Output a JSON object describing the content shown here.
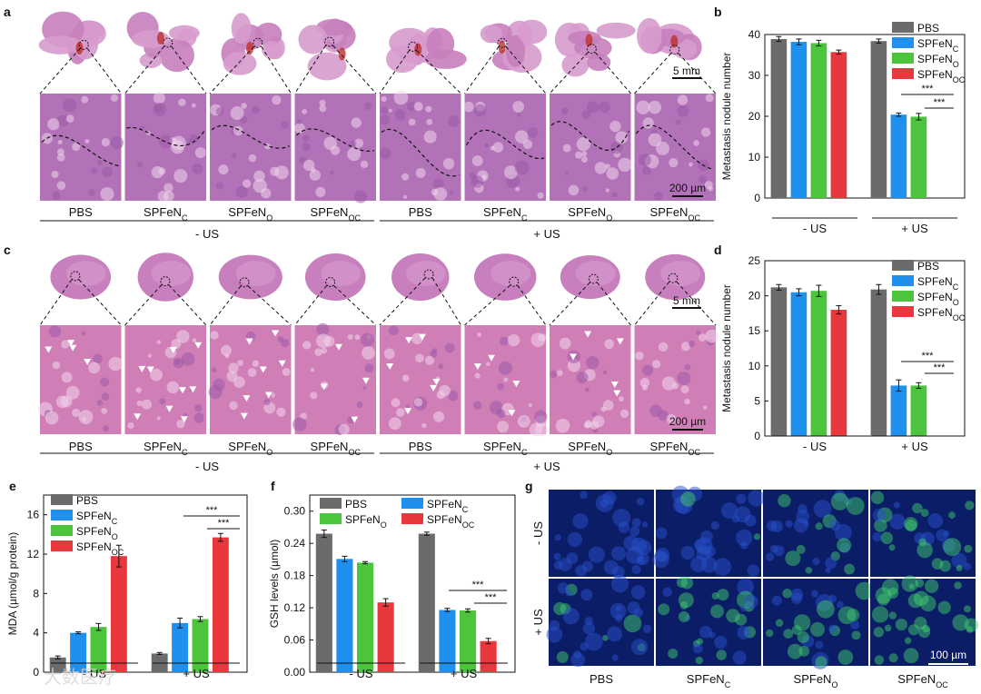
{
  "figure": {
    "panel_a": {
      "letter": "a",
      "groups": [
        "PBS",
        "SPFeN",
        "SPFeN",
        "SPFeN",
        "PBS",
        "SPFeN",
        "SPFeN",
        "SPFeN"
      ],
      "group_subs": [
        "",
        "C",
        "O",
        "OC",
        "",
        "C",
        "O",
        "OC"
      ],
      "conditions": [
        "- US",
        "+ US"
      ],
      "scale_top": "5 mm",
      "scale_bottom": "200 µm"
    },
    "panel_c": {
      "letter": "c",
      "groups": [
        "PBS",
        "SPFeN",
        "SPFeN",
        "SPFeN",
        "PBS",
        "SPFeN",
        "SPFeN",
        "SPFeN"
      ],
      "group_subs": [
        "",
        "C",
        "O",
        "OC",
        "",
        "C",
        "O",
        "OC"
      ],
      "conditions": [
        "- US",
        "+ US"
      ],
      "scale_top": "5 mm",
      "scale_bottom": "200 µm"
    },
    "panel_g": {
      "letter": "g",
      "rows": [
        "- US",
        "+ US"
      ],
      "columns": [
        "PBS",
        "SPFeN",
        "SPFeN",
        "SPFeN"
      ],
      "column_subs": [
        "",
        "C",
        "O",
        "OC"
      ],
      "scale": "100 µm"
    },
    "watermark": "大数医疗"
  },
  "colors": {
    "PBS": "#6b6b6b",
    "SPFeN_C": "#1f90ee",
    "SPFeN_O": "#4cc43c",
    "SPFeN_OC": "#e8373d",
    "he_tissue": "#c77fbd",
    "he_dark": "#9a5aa8",
    "fluor_bg": "#0b1d66",
    "fluor_green": "#3fc96a"
  },
  "chart_data": [
    {
      "letter": "b",
      "type": "bar",
      "ylabel": "Metastasis nodule number",
      "ylim": [
        0,
        40
      ],
      "yticks": [
        0,
        10,
        20,
        30,
        40
      ],
      "groups": [
        "- US",
        "+ US"
      ],
      "series": [
        {
          "name": "PBS",
          "sub": "",
          "values": [
            38.9,
            38.4
          ],
          "errors": [
            0.6,
            0.5
          ]
        },
        {
          "name": "SPFeN",
          "sub": "C",
          "values": [
            38.2,
            20.4
          ],
          "errors": [
            0.7,
            0.4
          ]
        },
        {
          "name": "SPFeN",
          "sub": "O",
          "values": [
            37.9,
            19.9
          ],
          "errors": [
            0.7,
            0.8
          ]
        },
        {
          "name": "SPFeN",
          "sub": "OC",
          "values": [
            35.7,
            null
          ],
          "errors": [
            0.5,
            null
          ]
        }
      ],
      "significance": [
        "***",
        "***"
      ],
      "legend_position": "top-right"
    },
    {
      "letter": "d",
      "type": "bar",
      "ylabel": "Metastasis nodule number",
      "ylim": [
        0,
        25
      ],
      "yticks": [
        0,
        5,
        10,
        15,
        20,
        25
      ],
      "groups": [
        "- US",
        "+ US"
      ],
      "series": [
        {
          "name": "PBS",
          "sub": "",
          "values": [
            21.2,
            20.9
          ],
          "errors": [
            0.4,
            0.7
          ]
        },
        {
          "name": "SPFeN",
          "sub": "C",
          "values": [
            20.5,
            7.2
          ],
          "errors": [
            0.5,
            0.8
          ]
        },
        {
          "name": "SPFeN",
          "sub": "O",
          "values": [
            20.7,
            7.2
          ],
          "errors": [
            0.8,
            0.4
          ]
        },
        {
          "name": "SPFeN",
          "sub": "OC",
          "values": [
            18.0,
            null
          ],
          "errors": [
            0.6,
            null
          ]
        }
      ],
      "significance": [
        "***",
        "***"
      ],
      "legend_position": "top-right"
    },
    {
      "letter": "e",
      "type": "bar",
      "ylabel": "MDA (µmol/g protein)",
      "ylim": [
        0,
        18
      ],
      "yticks": [
        0,
        4,
        8,
        12,
        16
      ],
      "groups": [
        "- US",
        "+ US"
      ],
      "series": [
        {
          "name": "PBS",
          "sub": "",
          "values": [
            1.5,
            1.9
          ],
          "errors": [
            0.15,
            0.1
          ]
        },
        {
          "name": "SPFeN",
          "sub": "C",
          "values": [
            4.0,
            5.0
          ],
          "errors": [
            0.1,
            0.5
          ]
        },
        {
          "name": "SPFeN",
          "sub": "O",
          "values": [
            4.6,
            5.4
          ],
          "errors": [
            0.35,
            0.25
          ]
        },
        {
          "name": "SPFeN",
          "sub": "OC",
          "values": [
            11.8,
            13.7
          ],
          "errors": [
            1.1,
            0.4
          ]
        }
      ],
      "significance": [
        "***",
        "***"
      ],
      "legend_position": "top-left"
    },
    {
      "letter": "f",
      "type": "bar",
      "ylabel": "GSH levels (µmol)",
      "ylim": [
        0,
        0.33
      ],
      "yticks": [
        "0.00",
        "0.06",
        "0.12",
        "0.18",
        "0.24",
        "0.30"
      ],
      "groups": [
        "- US",
        "+ US"
      ],
      "series": [
        {
          "name": "PBS",
          "sub": "",
          "values": [
            0.258,
            0.258
          ],
          "errors": [
            0.007,
            0.003
          ]
        },
        {
          "name": "SPFeN",
          "sub": "C",
          "values": [
            0.211,
            0.116
          ],
          "errors": [
            0.005,
            0.003
          ]
        },
        {
          "name": "SPFeN",
          "sub": "O",
          "values": [
            0.204,
            0.115
          ],
          "errors": [
            0.002,
            0.003
          ]
        },
        {
          "name": "SPFeN",
          "sub": "OC",
          "values": [
            0.13,
            0.058
          ],
          "errors": [
            0.007,
            0.005
          ]
        }
      ],
      "significance": [
        "***",
        "***"
      ],
      "legend_position": "top"
    }
  ]
}
